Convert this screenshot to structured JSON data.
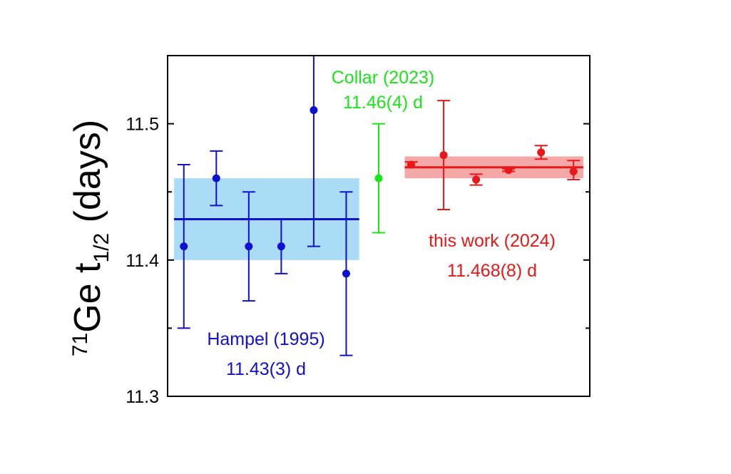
{
  "chart_data": {
    "type": "scatter",
    "ylabel": {
      "sup": "71",
      "main": "Ge t",
      "sub": "1/2",
      "suffix": " (days)"
    },
    "ylim": [
      11.3,
      11.55
    ],
    "yticks": [
      11.3,
      11.4,
      11.5
    ],
    "yticklabels": [
      "11.3",
      "11.4",
      "11.5"
    ],
    "y_minor_ticks": [
      11.35,
      11.45
    ],
    "xlim": [
      0,
      13
    ],
    "series": [
      {
        "name": "Hampel (1995)",
        "value_label": "11.43(3) d",
        "color": "#1010d0",
        "band_color": "#aadcf6",
        "mean": 11.43,
        "band": [
          11.4,
          11.46
        ],
        "mean_x_range": [
          0.2,
          5.9
        ],
        "points": [
          {
            "x": 0.5,
            "y": 11.41,
            "err_low": 11.35,
            "err_high": 11.47
          },
          {
            "x": 1.5,
            "y": 11.46,
            "err_low": 11.44,
            "err_high": 11.48
          },
          {
            "x": 2.5,
            "y": 11.41,
            "err_low": 11.37,
            "err_high": 11.45
          },
          {
            "x": 3.5,
            "y": 11.41,
            "err_low": 11.39,
            "err_high": 11.43
          },
          {
            "x": 4.5,
            "y": 11.51,
            "err_low": 11.41,
            "err_high": 11.55
          },
          {
            "x": 5.5,
            "y": 11.39,
            "err_low": 11.33,
            "err_high": 11.45
          }
        ]
      },
      {
        "name": "Collar (2023)",
        "value_label": "11.46(4) d",
        "color": "#19e619",
        "points": [
          {
            "x": 6.5,
            "y": 11.46,
            "err_low": 11.42,
            "err_high": 11.5
          }
        ]
      },
      {
        "name": "this work (2024)",
        "value_label": "11.468(8) d",
        "color": "#e81818",
        "band_color": "#f4a8a8",
        "mean": 11.468,
        "band": [
          11.46,
          11.476
        ],
        "mean_x_range": [
          7.3,
          12.8
        ],
        "points": [
          {
            "x": 7.5,
            "y": 11.47,
            "err_low": 11.468,
            "err_high": 11.472
          },
          {
            "x": 8.5,
            "y": 11.477,
            "err_low": 11.437,
            "err_high": 11.517
          },
          {
            "x": 9.5,
            "y": 11.459,
            "err_low": 11.455,
            "err_high": 11.463
          },
          {
            "x": 10.5,
            "y": 11.466,
            "err_low": 11.465,
            "err_high": 11.467
          },
          {
            "x": 11.5,
            "y": 11.479,
            "err_low": 11.474,
            "err_high": 11.484
          },
          {
            "x": 12.5,
            "y": 11.465,
            "err_low": 11.459,
            "err_high": 11.473
          }
        ]
      }
    ]
  }
}
